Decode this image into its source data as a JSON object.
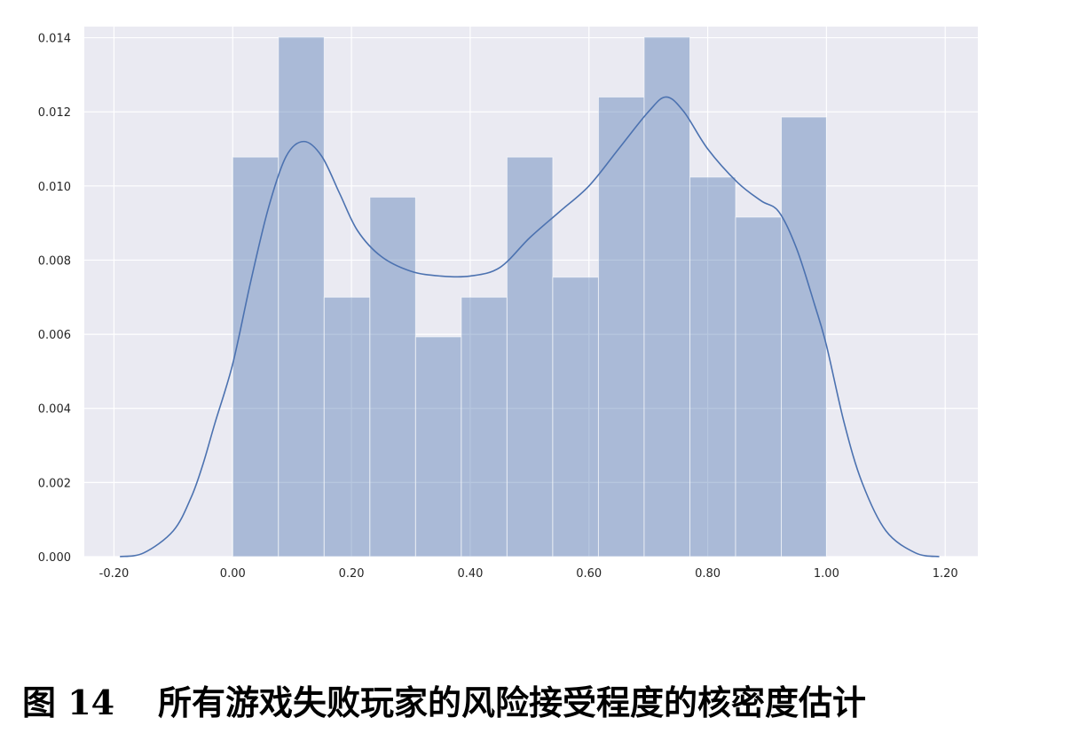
{
  "caption": {
    "figure_number": "图 14",
    "title": "所有游戏失败玩家的风险接受程度的核密度估计"
  },
  "chart_data": {
    "type": "bar",
    "overlay": "kde-line",
    "title": "",
    "xlabel": "",
    "ylabel": "",
    "xlim": [
      -0.25,
      1.255
    ],
    "ylim": [
      0,
      0.0143
    ],
    "grid": true,
    "colors": {
      "background": "#eaeaf2",
      "grid": "#ffffff",
      "bar": "#4c72b0",
      "line": "#4c72b0"
    },
    "x_ticks": [
      {
        "value": -0.2,
        "label": "-0.20"
      },
      {
        "value": 0.0,
        "label": "0.00"
      },
      {
        "value": 0.2,
        "label": "0.20"
      },
      {
        "value": 0.4,
        "label": "0.40"
      },
      {
        "value": 0.6,
        "label": "0.60"
      },
      {
        "value": 0.8,
        "label": "0.80"
      },
      {
        "value": 1.0,
        "label": "1.00"
      },
      {
        "value": 1.2,
        "label": "1.20"
      }
    ],
    "y_ticks": [
      {
        "value": 0.0,
        "label": "0.000"
      },
      {
        "value": 0.002,
        "label": "0.002"
      },
      {
        "value": 0.004,
        "label": "0.004"
      },
      {
        "value": 0.006,
        "label": "0.006"
      },
      {
        "value": 0.008,
        "label": "0.008"
      },
      {
        "value": 0.01,
        "label": "0.010"
      },
      {
        "value": 0.012,
        "label": "0.012"
      },
      {
        "value": 0.014,
        "label": "0.014"
      }
    ],
    "bins": [
      {
        "x0": 0.0,
        "x1": 0.077,
        "value": 0.01078
      },
      {
        "x0": 0.077,
        "x1": 0.154,
        "value": 0.01402
      },
      {
        "x0": 0.154,
        "x1": 0.231,
        "value": 0.007
      },
      {
        "x0": 0.231,
        "x1": 0.308,
        "value": 0.0097
      },
      {
        "x0": 0.308,
        "x1": 0.385,
        "value": 0.00593
      },
      {
        "x0": 0.385,
        "x1": 0.462,
        "value": 0.007
      },
      {
        "x0": 0.462,
        "x1": 0.539,
        "value": 0.01078
      },
      {
        "x0": 0.539,
        "x1": 0.616,
        "value": 0.00754
      },
      {
        "x0": 0.616,
        "x1": 0.693,
        "value": 0.0124
      },
      {
        "x0": 0.693,
        "x1": 0.77,
        "value": 0.01402
      },
      {
        "x0": 0.77,
        "x1": 0.847,
        "value": 0.01024
      },
      {
        "x0": 0.847,
        "x1": 0.924,
        "value": 0.00916
      },
      {
        "x0": 0.924,
        "x1": 1.0,
        "value": 0.01186
      }
    ],
    "kde": {
      "x": [
        -0.19,
        -0.15,
        -0.1,
        -0.07,
        -0.05,
        -0.03,
        0.0,
        0.03,
        0.06,
        0.09,
        0.12,
        0.15,
        0.18,
        0.21,
        0.25,
        0.3,
        0.35,
        0.4,
        0.45,
        0.5,
        0.55,
        0.6,
        0.65,
        0.7,
        0.73,
        0.76,
        0.8,
        0.85,
        0.89,
        0.92,
        0.95,
        0.98,
        1.0,
        1.03,
        1.06,
        1.1,
        1.15,
        1.19
      ],
      "y": [
        0.0,
        0.0001,
        0.0007,
        0.0016,
        0.0025,
        0.0036,
        0.0052,
        0.0074,
        0.0094,
        0.0108,
        0.0112,
        0.0108,
        0.0098,
        0.0088,
        0.0081,
        0.0077,
        0.00757,
        0.00757,
        0.0078,
        0.0086,
        0.0093,
        0.01,
        0.011,
        0.012,
        0.0124,
        0.012,
        0.011,
        0.0101,
        0.0096,
        0.0093,
        0.0083,
        0.0068,
        0.0057,
        0.0036,
        0.002,
        0.0007,
        0.0001,
        0.0
      ]
    }
  }
}
